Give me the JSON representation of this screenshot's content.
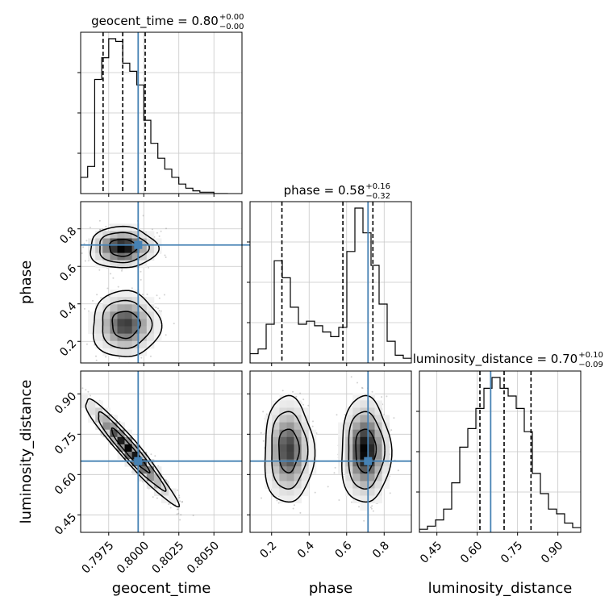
{
  "colors": {
    "truth": "#4682b4",
    "hist": "#000000",
    "quantile": "#000000",
    "grid": "#c8c8c8",
    "points": "#7f7f7f"
  },
  "chart_data": {
    "type": "corner",
    "parameters": [
      "geocent_time",
      "phase",
      "luminosity_distance"
    ],
    "truths": {
      "geocent_time": 0.7996,
      "phase": 0.714,
      "luminosity_distance": 0.65
    },
    "ranges": {
      "geocent_time": [
        0.7955,
        0.807
      ],
      "phase": [
        0.085,
        0.945
      ],
      "luminosity_distance": [
        0.385,
        0.985
      ]
    },
    "titles": [
      {
        "param": "geocent_time",
        "text": "geocent_time = 0.80",
        "sup": "+0.00",
        "sub": "−0.00"
      },
      {
        "param": "phase",
        "text": "phase = 0.58",
        "sup": "+0.16",
        "sub": "−0.32"
      },
      {
        "param": "luminosity_distance",
        "text": "luminosity_distance = 0.70",
        "sup": "+0.10",
        "sub": "−0.09"
      }
    ],
    "ticks": {
      "geocent_time": [
        "0.7975",
        "0.8000",
        "0.8025",
        "0.8050"
      ],
      "phase": [
        "0.2",
        "0.4",
        "0.6",
        "0.8"
      ],
      "luminosity_distance": [
        "0.45",
        "0.60",
        "0.75",
        "0.90"
      ]
    },
    "xlabels": [
      "geocent_time",
      "phase",
      "luminosity_distance"
    ],
    "ylabels": [
      "phase",
      "luminosity_distance"
    ],
    "quantiles": {
      "geocent_time": [
        0.7971,
        0.7985,
        0.8001
      ],
      "phase": [
        0.255,
        0.58,
        0.74
      ],
      "luminosity_distance": [
        0.61,
        0.7,
        0.8
      ]
    },
    "histograms": [
      {
        "param": "geocent_time",
        "bins": [
          0.7955,
          0.796,
          0.7965,
          0.797,
          0.7975,
          0.798,
          0.7985,
          0.799,
          0.7995,
          0.8,
          0.8005,
          0.801,
          0.8015,
          0.802,
          0.8025,
          0.803,
          0.8035,
          0.804,
          0.8045,
          0.805,
          0.8055,
          0.806
        ],
        "counts": [
          12,
          20,
          84,
          100,
          114,
          112,
          96,
          90,
          80,
          54,
          37,
          26,
          18,
          12,
          7,
          4,
          2,
          1,
          1,
          0,
          0
        ]
      },
      {
        "param": "phase",
        "bins": [
          0.085,
          0.128,
          0.171,
          0.214,
          0.257,
          0.3,
          0.343,
          0.386,
          0.429,
          0.472,
          0.515,
          0.558,
          0.601,
          0.644,
          0.687,
          0.73,
          0.773,
          0.816,
          0.859,
          0.902,
          0.945
        ],
        "counts": [
          6,
          9,
          25,
          66,
          55,
          36,
          25,
          27,
          24,
          20,
          17,
          23,
          72,
          100,
          84,
          63,
          38,
          14,
          5,
          3
        ]
      },
      {
        "param": "luminosity_distance",
        "bins": [
          0.385,
          0.415,
          0.445,
          0.475,
          0.505,
          0.535,
          0.565,
          0.595,
          0.625,
          0.655,
          0.685,
          0.715,
          0.745,
          0.775,
          0.805,
          0.835,
          0.865,
          0.895,
          0.925,
          0.955,
          0.985
        ],
        "counts": [
          2,
          4,
          8,
          15,
          32,
          55,
          67,
          80,
          93,
          100,
          93,
          88,
          80,
          65,
          38,
          25,
          15,
          12,
          6,
          3
        ]
      }
    ],
    "joint": [
      {
        "x": "geocent_time",
        "y": "phase",
        "clusters": [
          {
            "mx": 0.7985,
            "my": 0.7,
            "sx": 0.0011,
            "sy": 0.05,
            "rho": 0,
            "w": 0.55
          },
          {
            "mx": 0.7987,
            "my": 0.29,
            "sx": 0.0011,
            "sy": 0.08,
            "rho": 0,
            "w": 0.45
          }
        ]
      },
      {
        "x": "geocent_time",
        "y": "luminosity_distance",
        "clusters": [
          {
            "mx": 0.799,
            "my": 0.69,
            "sx": 0.0015,
            "sy": 0.09,
            "rho": -0.96,
            "w": 1.0
          }
        ]
      },
      {
        "x": "phase",
        "y": "luminosity_distance",
        "clusters": [
          {
            "mx": 0.29,
            "my": 0.69,
            "sx": 0.06,
            "sy": 0.09,
            "rho": 0,
            "w": 0.45
          },
          {
            "mx": 0.7,
            "my": 0.69,
            "sx": 0.06,
            "sy": 0.09,
            "rho": 0,
            "w": 0.55
          }
        ]
      }
    ],
    "grid": true
  }
}
